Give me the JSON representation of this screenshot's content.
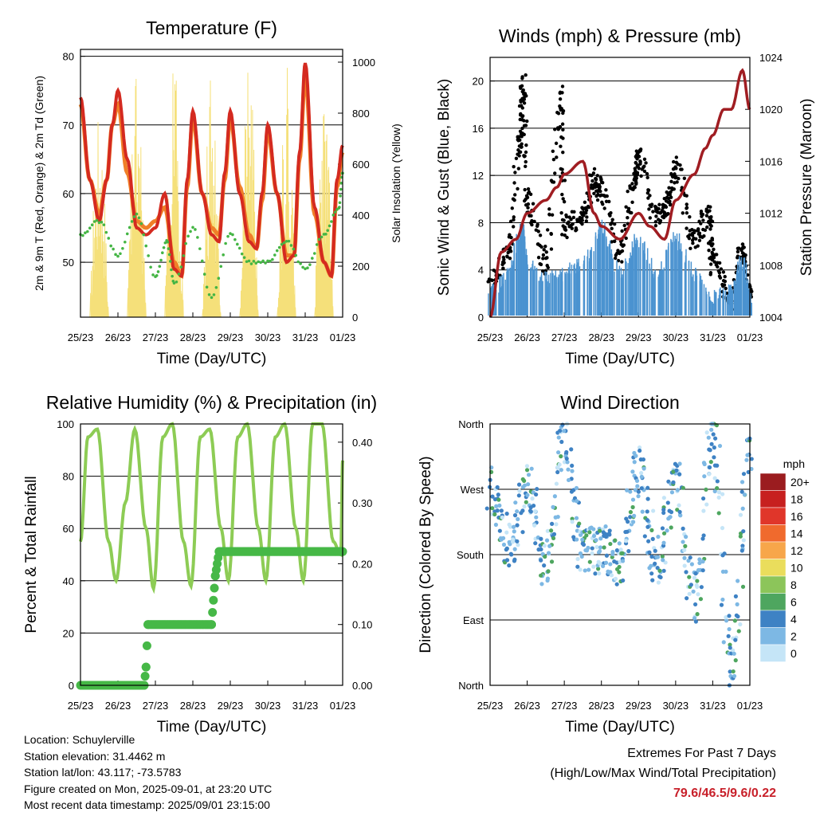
{
  "x_ticks": [
    "25/23",
    "26/23",
    "27/23",
    "28/23",
    "29/23",
    "30/23",
    "31/23",
    "01/23"
  ],
  "charts": [
    {
      "type": "line",
      "title": "Temperature (F)",
      "xlabel": "Time (Day/UTC)",
      "ylabel_left": "2m & 9m T (Red, Orange) & 2m Td (Green)",
      "ylabel_right": "Solar Insolation (Yellow)",
      "ylim_left": [
        42,
        81
      ],
      "yticks_left": [
        50,
        60,
        70,
        80
      ],
      "ylim_right": [
        0,
        1050
      ],
      "yticks_right": [
        0,
        200,
        400,
        600,
        800,
        1000
      ],
      "colors": {
        "temp_2m": "#d42a20",
        "temp_9m": "#f07f28",
        "dewpoint": "#44b544",
        "solar": "#f5e07a"
      }
    },
    {
      "type": "scatter",
      "title": "Winds (mph) & Pressure (mb)",
      "xlabel": "Time (Day/UTC)",
      "ylabel_left": "Sonic Wind & Gust (Blue, Black)",
      "ylabel_right": "Station Pressure (Maroon)",
      "ylim_left": [
        0,
        22
      ],
      "yticks_left": [
        0,
        4,
        8,
        12,
        16,
        20
      ],
      "ylim_right": [
        1004,
        1024
      ],
      "yticks_right": [
        1004,
        1008,
        1012,
        1016,
        1020,
        1024
      ],
      "colors": {
        "wind": "#4b93d0",
        "gust": "#000000",
        "pressure": "#a01d22"
      }
    },
    {
      "type": "line",
      "title": "Relative Humidity (%) & Precipitation (in)",
      "xlabel": "Time (Day/UTC)",
      "ylabel_left": "Percent & Total Rainfall",
      "ylim_left": [
        0,
        100
      ],
      "yticks_left": [
        0,
        20,
        40,
        60,
        80,
        100
      ],
      "ylim_right": [
        0,
        0.43
      ],
      "yticks_right": [
        "0.00",
        "0.10",
        "0.20",
        "0.30",
        "0.40"
      ],
      "colors": {
        "rh": "#8dcc55",
        "rain": "#46b847"
      }
    },
    {
      "type": "scatter",
      "title": "Wind Direction",
      "xlabel": "Time (Day/UTC)",
      "ylabel_left": "Direction (Colored By Speed)",
      "ylim_left": [
        0,
        360
      ],
      "yticks_left": [
        "North",
        "East",
        "South",
        "West",
        "North"
      ],
      "legend": {
        "title": "mph",
        "labels": [
          "20+",
          "18",
          "16",
          "14",
          "12",
          "10",
          "8",
          "6",
          "4",
          "2",
          "0"
        ],
        "colors": [
          "#9b1c1f",
          "#c7201f",
          "#e0362a",
          "#f06a2d",
          "#f7a64a",
          "#eadd5c",
          "#8cc55a",
          "#4ea65f",
          "#3e82c4",
          "#7db8e4",
          "#c5e5f7"
        ]
      }
    }
  ],
  "footer": {
    "location": "Location: Schuylerville",
    "elevation": "Station elevation: 31.4462 m",
    "latlon": "Station lat/lon: 43.117; -73.5783",
    "created": "Figure created on Mon, 2025-09-01, at 23:20 UTC",
    "recent": "Most recent data timestamp: 2025/09/01 23:15:00"
  },
  "extremes": {
    "title": "Extremes For Past 7 Days",
    "subtitle": "(High/Low/Max Wind/Total Precipitation)",
    "values": "79.6/46.5/9.6/0.22"
  },
  "chart_data": [
    {
      "type": "line",
      "title": "Temperature (F)",
      "x_unit": "days since 25/23",
      "series": [
        {
          "values_x": [
            0,
            0.25,
            0.5,
            0.7,
            0.85,
            1.0,
            1.25,
            1.5,
            1.75,
            2.0,
            2.25,
            2.5,
            2.7,
            2.85,
            3.0,
            3.25,
            3.5,
            3.7,
            3.85,
            4.0,
            4.25,
            4.5,
            4.7,
            4.85,
            5.0,
            5.25,
            5.5,
            5.7,
            5.85,
            6.0,
            6.25,
            6.5,
            6.7,
            6.85,
            7.0
          ],
          "values": [
            74,
            62,
            56,
            62,
            70,
            75,
            65,
            55,
            54,
            55,
            60,
            49,
            48,
            62,
            72,
            60,
            54,
            53,
            63,
            72,
            60,
            53,
            52,
            60,
            70,
            60,
            50,
            51,
            66,
            79,
            58,
            50,
            48,
            62,
            67
          ]
        },
        {
          "values_x": [
            0,
            0.25,
            0.5,
            0.7,
            0.85,
            1.0,
            1.25,
            1.5,
            1.75,
            2.0,
            2.25,
            2.5,
            2.7,
            2.85,
            3.0,
            3.25,
            3.5,
            3.7,
            3.85,
            4.0,
            4.25,
            4.5,
            4.7,
            4.85,
            5.0,
            5.25,
            5.5,
            5.7,
            5.85,
            6.0,
            6.25,
            6.5,
            6.7,
            6.85,
            7.0
          ],
          "values": [
            73,
            62,
            57,
            62,
            70,
            73,
            63,
            56,
            55,
            56,
            58,
            50,
            48,
            61,
            71,
            60,
            55,
            54,
            62,
            71,
            61,
            54,
            52,
            59,
            69,
            60,
            51,
            51,
            65,
            77,
            57,
            50,
            48,
            61,
            66
          ]
        },
        {
          "values_x": [
            0,
            0.5,
            1.0,
            1.5,
            2.0,
            2.3,
            2.5,
            3.0,
            3.5,
            4.0,
            4.5,
            5.0,
            5.5,
            6.0,
            6.5,
            6.9,
            7.0
          ],
          "values": [
            54,
            56,
            51,
            57,
            48,
            53,
            47,
            55,
            45,
            54,
            50,
            50,
            53,
            49,
            54,
            58,
            63
          ]
        },
        {
          "values_x": [
            0.25,
            0.5,
            0.6,
            0.75,
            1.25,
            1.5,
            1.6,
            1.75,
            2.25,
            2.5,
            2.6,
            2.75,
            3.25,
            3.5,
            3.6,
            3.75,
            4.25,
            4.5,
            4.6,
            4.75,
            5.25,
            5.5,
            5.6,
            5.75,
            6.25,
            6.5,
            6.6,
            6.75
          ],
          "values": [
            0,
            820,
            300,
            0,
            0,
            960,
            450,
            0,
            0,
            1000,
            500,
            0,
            0,
            960,
            480,
            0,
            0,
            980,
            500,
            0,
            0,
            990,
            450,
            0,
            0,
            900,
            300,
            0
          ]
        }
      ]
    },
    {
      "type": "scatter",
      "title": "Winds (mph) & Pressure (mb)",
      "x_unit": "days since 25/23",
      "series": [
        {
          "values_x": [
            0,
            0.5,
            0.85,
            1.0,
            1.5,
            2.0,
            2.5,
            3.0,
            3.5,
            4.0,
            4.5,
            5.0,
            5.5,
            6.0,
            6.5,
            6.8,
            7.0
          ],
          "values": [
            1.5,
            3,
            7,
            4,
            2.5,
            3,
            4,
            7,
            3,
            6,
            3,
            6,
            3,
            1,
            1.5,
            4,
            1
          ]
        },
        {
          "values_x": [
            0,
            0.5,
            0.8,
            0.9,
            1.0,
            1.5,
            1.9,
            2.0,
            2.5,
            2.8,
            3.0,
            3.5,
            3.9,
            4.0,
            4.5,
            4.8,
            5.0,
            5.5,
            5.9,
            6.0,
            6.5,
            6.8,
            7.0
          ],
          "values": [
            3,
            6,
            15,
            20,
            10,
            5,
            19,
            8,
            9,
            12,
            11,
            6,
            12,
            14,
            9,
            10,
            13,
            7,
            9,
            5,
            2,
            6,
            2
          ]
        },
        {
          "values_x": [
            0,
            0.3,
            0.7,
            1.0,
            1.5,
            1.8,
            2.0,
            2.5,
            2.8,
            3.0,
            3.5,
            4.0,
            4.3,
            4.7,
            5.0,
            5.5,
            5.8,
            6.0,
            6.3,
            6.5,
            6.8,
            7.0
          ],
          "values": [
            1004,
            1009,
            1010,
            1012,
            1013,
            1014,
            1015,
            1016,
            1012,
            1011,
            1010,
            1012,
            1011,
            1010,
            1013,
            1015,
            1017,
            1018,
            1020,
            1020,
            1023,
            1020
          ]
        }
      ]
    },
    {
      "type": "line",
      "title": "Relative Humidity (%) & Precipitation (in)",
      "x_unit": "days since 25/23",
      "series": [
        {
          "values_x": [
            0,
            0.2,
            0.45,
            0.75,
            0.95,
            1.2,
            1.45,
            1.75,
            1.95,
            2.2,
            2.45,
            2.75,
            2.95,
            3.2,
            3.45,
            3.75,
            3.95,
            4.2,
            4.45,
            4.75,
            4.95,
            5.2,
            5.45,
            5.75,
            5.95,
            6.2,
            6.45,
            6.75,
            6.95,
            7.0
          ],
          "values": [
            55,
            95,
            98,
            55,
            40,
            70,
            98,
            60,
            37,
            95,
            100,
            55,
            38,
            95,
            98,
            60,
            40,
            95,
            100,
            60,
            40,
            95,
            100,
            60,
            40,
            100,
            100,
            55,
            50,
            86
          ]
        },
        {
          "values_x": [
            0,
            1.7,
            1.75,
            1.8,
            3.5,
            3.6,
            3.7,
            7.0
          ],
          "values": [
            0,
            0,
            0.03,
            0.1,
            0.1,
            0.18,
            0.22,
            0.22
          ]
        }
      ]
    },
    {
      "type": "scatter",
      "title": "Wind Direction",
      "x_unit": "days since 25/23",
      "series": [
        {
          "values_x": [
            0,
            0.5,
            1.0,
            1.5,
            2.0,
            2.5,
            3.0,
            3.5,
            4.0,
            4.5,
            5.0,
            5.5,
            6.0,
            6.5,
            7.0
          ],
          "values": [
            270,
            190,
            270,
            170,
            340,
            180,
            190,
            170,
            300,
            170,
            280,
            120,
            350,
            20,
            320
          ]
        }
      ]
    }
  ]
}
